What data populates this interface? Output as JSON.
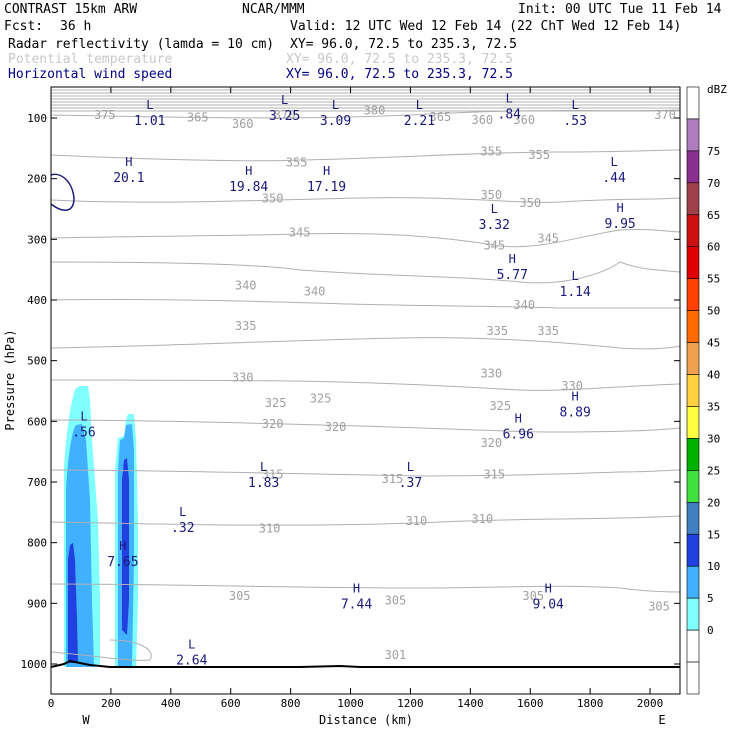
{
  "header": {
    "model": "CONTRAST 15km ARW",
    "org": "NCAR/MMM",
    "init": "Init: 00 UTC Tue 11 Feb 14",
    "fcst_label": "Fcst:",
    "fcst_value": "36 h",
    "valid": "Valid: 12 UTC Wed 12 Feb 14 (22 ChT Wed 12 Feb 14)",
    "fields": [
      {
        "name": "Radar reflectivity (lamda = 10 cm)",
        "xy": "XY=  96.0, 72.5 to 235.3, 72.5",
        "color": "#000000"
      },
      {
        "name": "Potential temperature",
        "xy": "XY=  96.0, 72.5 to 235.3, 72.5",
        "color": "#c8c8c8"
      },
      {
        "name": "Horizontal wind speed",
        "xy": "XY=  96.0, 72.5 to 235.3, 72.5",
        "color": "#000080"
      }
    ]
  },
  "chart_data": {
    "type": "cross-section",
    "xlabel": "Distance (km)",
    "ylabel": "Pressure (hPa)",
    "xlim": [
      0,
      2100
    ],
    "ylim": [
      1050,
      55
    ],
    "xticks": [
      0,
      200,
      400,
      600,
      800,
      1000,
      1200,
      1400,
      1600,
      1800,
      2000
    ],
    "yticks": [
      100,
      200,
      300,
      400,
      500,
      600,
      700,
      800,
      900,
      1000
    ],
    "x_end_labels": {
      "left": "W",
      "right": "E"
    },
    "theta_contours": [
      {
        "label": "375",
        "x": 180,
        "p": 95
      },
      {
        "label": "365",
        "x": 490,
        "p": 99
      },
      {
        "label": "360",
        "x": 640,
        "p": 110
      },
      {
        "label": "370",
        "x": 780,
        "p": 95
      },
      {
        "label": "380",
        "x": 1080,
        "p": 88
      },
      {
        "label": "365",
        "x": 1300,
        "p": 98
      },
      {
        "label": "360",
        "x": 1440,
        "p": 103
      },
      {
        "label": "360",
        "x": 1580,
        "p": 103
      },
      {
        "label": "370",
        "x": 2050,
        "p": 95
      },
      {
        "label": "355",
        "x": 820,
        "p": 173
      },
      {
        "label": "355",
        "x": 1470,
        "p": 155
      },
      {
        "label": "355",
        "x": 1630,
        "p": 161
      },
      {
        "label": "350",
        "x": 740,
        "p": 233
      },
      {
        "label": "350",
        "x": 1470,
        "p": 227
      },
      {
        "label": "350",
        "x": 1600,
        "p": 240
      },
      {
        "label": "345",
        "x": 830,
        "p": 289
      },
      {
        "label": "345",
        "x": 1480,
        "p": 310
      },
      {
        "label": "345",
        "x": 1660,
        "p": 299
      },
      {
        "label": "340",
        "x": 650,
        "p": 376
      },
      {
        "label": "340",
        "x": 880,
        "p": 386
      },
      {
        "label": "340",
        "x": 1580,
        "p": 408
      },
      {
        "label": "335",
        "x": 650,
        "p": 443
      },
      {
        "label": "335",
        "x": 1490,
        "p": 451
      },
      {
        "label": "335",
        "x": 1660,
        "p": 451
      },
      {
        "label": "330",
        "x": 640,
        "p": 528
      },
      {
        "label": "330",
        "x": 1470,
        "p": 521
      },
      {
        "label": "330",
        "x": 1740,
        "p": 542
      },
      {
        "label": "325",
        "x": 750,
        "p": 570
      },
      {
        "label": "325",
        "x": 900,
        "p": 562
      },
      {
        "label": "325",
        "x": 1500,
        "p": 575
      },
      {
        "label": "320",
        "x": 740,
        "p": 604
      },
      {
        "label": "320",
        "x": 950,
        "p": 609
      },
      {
        "label": "320",
        "x": 1470,
        "p": 636
      },
      {
        "label": "315",
        "x": 740,
        "p": 688
      },
      {
        "label": "315",
        "x": 1140,
        "p": 695
      },
      {
        "label": "315",
        "x": 1480,
        "p": 688
      },
      {
        "label": "310",
        "x": 730,
        "p": 777
      },
      {
        "label": "310",
        "x": 1220,
        "p": 764
      },
      {
        "label": "310",
        "x": 1440,
        "p": 761
      },
      {
        "label": "305",
        "x": 630,
        "p": 888
      },
      {
        "label": "305",
        "x": 1150,
        "p": 895
      },
      {
        "label": "305",
        "x": 1610,
        "p": 888
      },
      {
        "label": "305",
        "x": 2030,
        "p": 905
      },
      {
        "label": "301",
        "x": 1150,
        "p": 985
      }
    ],
    "highs_lows": [
      {
        "type": "L",
        "value": "1.01",
        "x": 330,
        "p": 98
      },
      {
        "type": "L",
        "value": "3.25",
        "x": 780,
        "p": 90
      },
      {
        "type": "L",
        "value": "3.09",
        "x": 950,
        "p": 98
      },
      {
        "type": "L",
        "value": "2.21",
        "x": 1230,
        "p": 98
      },
      {
        "type": "L",
        "value": ".84",
        "x": 1530,
        "p": 88
      },
      {
        "type": "L",
        "value": ".53",
        "x": 1750,
        "p": 98
      },
      {
        "type": "H",
        "value": "20.1",
        "x": 260,
        "p": 192
      },
      {
        "type": "H",
        "value": "19.84",
        "x": 660,
        "p": 207
      },
      {
        "type": "H",
        "value": "17.19",
        "x": 920,
        "p": 207
      },
      {
        "type": "L",
        "value": ".44",
        "x": 1880,
        "p": 192
      },
      {
        "type": "L",
        "value": "3.32",
        "x": 1480,
        "p": 270
      },
      {
        "type": "H",
        "value": "9.95",
        "x": 1900,
        "p": 268
      },
      {
        "type": "H",
        "value": "5.77",
        "x": 1540,
        "p": 352
      },
      {
        "type": "L",
        "value": "1.14",
        "x": 1750,
        "p": 380
      },
      {
        "type": "H",
        "value": "8.89",
        "x": 1750,
        "p": 579
      },
      {
        "type": "L",
        "value": ".56",
        "x": 110,
        "p": 612
      },
      {
        "type": "H",
        "value": "6.96",
        "x": 1560,
        "p": 615
      },
      {
        "type": "L",
        "value": "1.83",
        "x": 710,
        "p": 695
      },
      {
        "type": "L",
        "value": ".37",
        "x": 1200,
        "p": 695
      },
      {
        "type": "L",
        "value": ".32",
        "x": 440,
        "p": 769
      },
      {
        "type": "H",
        "value": "7.65",
        "x": 240,
        "p": 825
      },
      {
        "type": "H",
        "value": "7.44",
        "x": 1020,
        "p": 895
      },
      {
        "type": "H",
        "value": "9.04",
        "x": 1660,
        "p": 895
      },
      {
        "type": "L",
        "value": "2.64",
        "x": 470,
        "p": 988
      }
    ],
    "reflectivity_cells": [
      {
        "x_center": 90,
        "x_width": 110,
        "p_top": 540,
        "p_bottom": 1000,
        "max_dbz": 20
      },
      {
        "x_center": 255,
        "x_width": 70,
        "p_top": 590,
        "p_bottom": 1000,
        "max_dbz": 20
      }
    ],
    "colorbar": {
      "unit": "dBZ",
      "ticks": [
        "75",
        "70",
        "65",
        "60",
        "55",
        "50",
        "45",
        "40",
        "35",
        "30",
        "25",
        "20",
        "15",
        "10",
        "5",
        "0"
      ],
      "colors": [
        "#ffffff",
        "#b07cc0",
        "#8b2f8f",
        "#a0404a",
        "#cc1010",
        "#e00000",
        "#ff4000",
        "#ff6a00",
        "#f0a050",
        "#ffd040",
        "#ffff40",
        "#00b000",
        "#40e040",
        "#4080c0",
        "#2040e0",
        "#40b0ff",
        "#80ffff",
        "#ffffff",
        "#ffffff"
      ]
    }
  }
}
